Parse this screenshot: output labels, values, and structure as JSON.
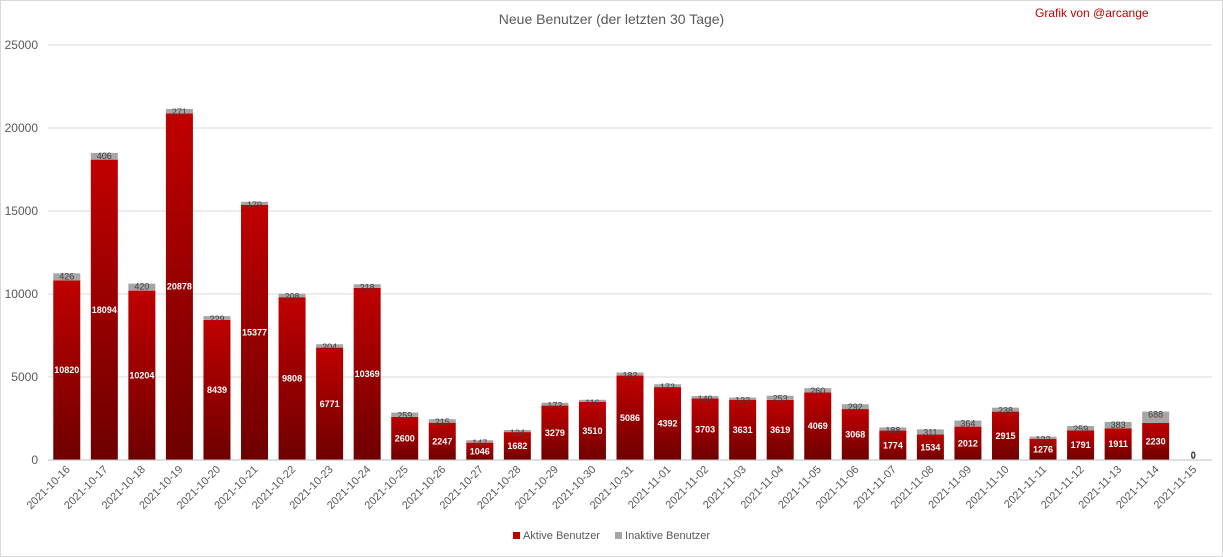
{
  "credit": "Grafik von @arcange",
  "chart_data": {
    "type": "bar",
    "stacked": true,
    "title": "Neue Benutzer (der letzten 30 Tage)",
    "xlabel": "",
    "ylabel": "",
    "ylim": [
      0,
      25000
    ],
    "yticks": [
      0,
      5000,
      10000,
      15000,
      20000,
      25000
    ],
    "grid": true,
    "legend_position": "bottom",
    "categories": [
      "2021-10-16",
      "2021-10-17",
      "2021-10-18",
      "2021-10-19",
      "2021-10-20",
      "2021-10-21",
      "2021-10-22",
      "2021-10-23",
      "2021-10-24",
      "2021-10-25",
      "2021-10-26",
      "2021-10-27",
      "2021-10-28",
      "2021-10-29",
      "2021-10-30",
      "2021-10-31",
      "2021-11-01",
      "2021-11-02",
      "2021-11-03",
      "2021-11-04",
      "2021-11-05",
      "2021-11-06",
      "2021-11-07",
      "2021-11-08",
      "2021-11-09",
      "2021-11-10",
      "2021-11-11",
      "2021-11-12",
      "2021-11-13",
      "2021-11-14",
      "2021-11-15"
    ],
    "series": [
      {
        "name": "Aktive Benutzer",
        "color": "#c00000",
        "values": [
          10820,
          18094,
          10204,
          20878,
          8439,
          15377,
          9808,
          6771,
          10369,
          2600,
          2247,
          1046,
          1682,
          3279,
          3510,
          5086,
          4392,
          3703,
          3631,
          3619,
          4069,
          3068,
          1774,
          1534,
          2012,
          2915,
          1276,
          1791,
          1911,
          2230,
          0
        ]
      },
      {
        "name": "Inaktive Benutzer",
        "color": "#a6a6a6",
        "values": [
          426,
          406,
          420,
          271,
          229,
          179,
          208,
          204,
          218,
          259,
          215,
          147,
          124,
          173,
          116,
          183,
          172,
          149,
          133,
          253,
          260,
          292,
          188,
          311,
          364,
          238,
          132,
          259,
          383,
          688,
          0
        ]
      }
    ]
  }
}
